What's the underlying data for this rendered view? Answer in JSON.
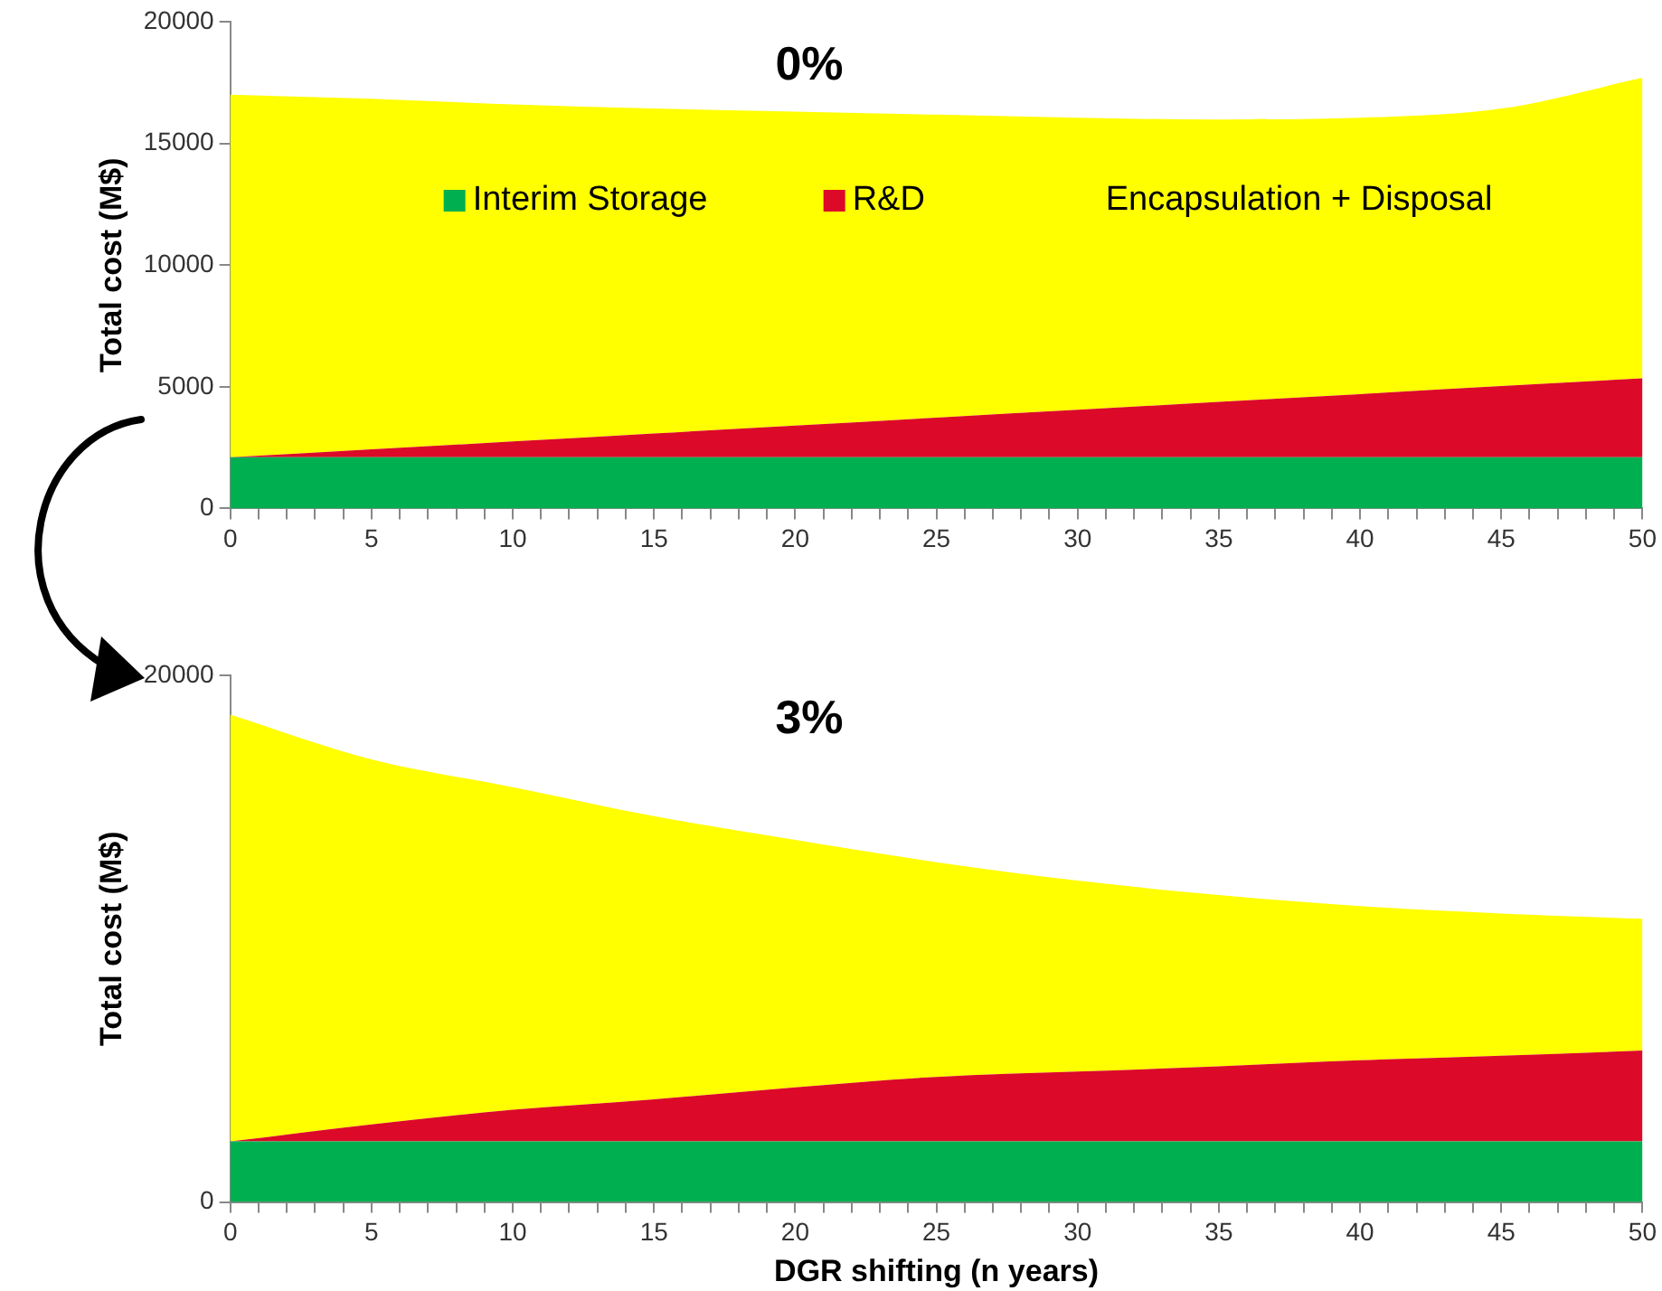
{
  "chart_data": [
    {
      "type": "area",
      "title": "0%",
      "ylabel": "Total cost (M$)",
      "stacked": true,
      "legend": "top",
      "x": [
        0,
        5,
        10,
        15,
        20,
        25,
        30,
        35,
        40,
        45,
        50
      ],
      "xlim": [
        0,
        50
      ],
      "xticks": [
        0,
        {
          "value": 1,
          "label": null
        },
        {
          "value": 2,
          "label": null
        },
        {
          "value": 3,
          "label": null
        },
        {
          "value": 4,
          "label": null
        },
        5,
        {
          "value": 6,
          "label": null
        },
        {
          "value": 7,
          "label": null
        },
        {
          "value": 8,
          "label": null
        },
        {
          "value": 9,
          "label": null
        },
        10,
        {
          "value": 11,
          "label": null
        },
        {
          "value": 12,
          "label": null
        },
        {
          "value": 13,
          "label": null
        },
        {
          "value": 14,
          "label": null
        },
        15,
        {
          "value": 16,
          "label": null
        },
        {
          "value": 17,
          "label": null
        },
        {
          "value": 18,
          "label": null
        },
        {
          "value": 19,
          "label": null
        },
        20,
        {
          "value": 21,
          "label": null
        },
        {
          "value": 22,
          "label": null
        },
        {
          "value": 23,
          "label": null
        },
        {
          "value": 24,
          "label": null
        },
        25,
        {
          "value": 26,
          "label": null
        },
        {
          "value": 27,
          "label": null
        },
        {
          "value": 28,
          "label": null
        },
        {
          "value": 29,
          "label": null
        },
        30,
        {
          "value": 31,
          "label": null
        },
        {
          "value": 32,
          "label": null
        },
        {
          "value": 33,
          "label": null
        },
        {
          "value": 34,
          "label": null
        },
        35,
        {
          "value": 36,
          "label": null
        },
        {
          "value": 37,
          "label": null
        },
        {
          "value": 38,
          "label": null
        },
        {
          "value": 39,
          "label": null
        },
        40,
        {
          "value": 41,
          "label": null
        },
        {
          "value": 42,
          "label": null
        },
        {
          "value": 43,
          "label": null
        },
        {
          "value": 44,
          "label": null
        },
        45,
        {
          "value": 46,
          "label": null
        },
        {
          "value": 47,
          "label": null
        },
        {
          "value": 48,
          "label": null
        },
        {
          "value": 49,
          "label": null
        },
        50
      ],
      "ylim": [
        0,
        20000
      ],
      "yticks": [
        0,
        5000,
        10000,
        15000,
        20000
      ],
      "series": [
        {
          "name": "Interim Storage",
          "color": "#00b050",
          "values": [
            2100,
            2100,
            2100,
            2100,
            2100,
            2100,
            2100,
            2100,
            2100,
            2100,
            2100
          ]
        },
        {
          "name": "R&D",
          "color": "#dc0a28",
          "values": [
            0,
            330,
            650,
            980,
            1300,
            1630,
            1950,
            2280,
            2600,
            2930,
            3250
          ]
        },
        {
          "name": "Encapsulation + Disposal",
          "color": "#ffff00",
          "values": [
            14900,
            14400,
            13850,
            13350,
            12900,
            12450,
            12000,
            11600,
            11350,
            11400,
            12350
          ]
        }
      ]
    },
    {
      "type": "area",
      "title": "3%",
      "ylabel": "Total cost (M$)",
      "xlabel": "DGR shifting (n years)",
      "stacked": true,
      "x": [
        0,
        5,
        10,
        15,
        20,
        25,
        30,
        35,
        40,
        45,
        50
      ],
      "xlim": [
        0,
        50
      ],
      "xticks": [
        0,
        {
          "value": 1,
          "label": null
        },
        {
          "value": 2,
          "label": null
        },
        {
          "value": 3,
          "label": null
        },
        {
          "value": 4,
          "label": null
        },
        5,
        {
          "value": 6,
          "label": null
        },
        {
          "value": 7,
          "label": null
        },
        {
          "value": 8,
          "label": null
        },
        {
          "value": 9,
          "label": null
        },
        10,
        {
          "value": 11,
          "label": null
        },
        {
          "value": 12,
          "label": null
        },
        {
          "value": 13,
          "label": null
        },
        {
          "value": 14,
          "label": null
        },
        15,
        {
          "value": 16,
          "label": null
        },
        {
          "value": 17,
          "label": null
        },
        {
          "value": 18,
          "label": null
        },
        {
          "value": 19,
          "label": null
        },
        20,
        {
          "value": 21,
          "label": null
        },
        {
          "value": 22,
          "label": null
        },
        {
          "value": 23,
          "label": null
        },
        {
          "value": 24,
          "label": null
        },
        25,
        {
          "value": 26,
          "label": null
        },
        {
          "value": 27,
          "label": null
        },
        {
          "value": 28,
          "label": null
        },
        {
          "value": 29,
          "label": null
        },
        30,
        {
          "value": 31,
          "label": null
        },
        {
          "value": 32,
          "label": null
        },
        {
          "value": 33,
          "label": null
        },
        {
          "value": 34,
          "label": null
        },
        35,
        {
          "value": 36,
          "label": null
        },
        {
          "value": 37,
          "label": null
        },
        {
          "value": 38,
          "label": null
        },
        {
          "value": 39,
          "label": null
        },
        40,
        {
          "value": 41,
          "label": null
        },
        {
          "value": 42,
          "label": null
        },
        {
          "value": 43,
          "label": null
        },
        {
          "value": 44,
          "label": null
        },
        45,
        {
          "value": 46,
          "label": null
        },
        {
          "value": 47,
          "label": null
        },
        {
          "value": 48,
          "label": null
        },
        {
          "value": 49,
          "label": null
        },
        50
      ],
      "ylim": [
        0,
        20000
      ],
      "yticks": [
        0,
        20000
      ],
      "series": [
        {
          "color": "#00b050",
          "values": [
            2300,
            2300,
            2300,
            2300,
            2300,
            2300,
            2300,
            2300,
            2300,
            2300,
            2300
          ]
        },
        {
          "color": "#dc0a28",
          "values": [
            0,
            650,
            1200,
            1600,
            2050,
            2450,
            2650,
            2850,
            3080,
            3250,
            3450
          ]
        },
        {
          "color": "#ffff00",
          "values": [
            16200,
            13850,
            12250,
            10750,
            9400,
            8150,
            7250,
            6500,
            5850,
            5400,
            5000
          ]
        }
      ]
    }
  ]
}
